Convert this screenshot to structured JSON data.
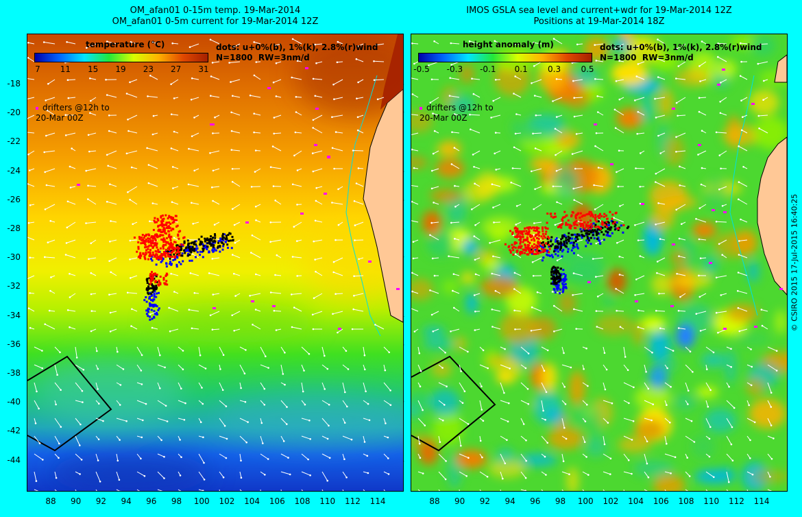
{
  "left_panel": {
    "title_line1": "OM_afan01 0-15m temp. 19-Mar-2014",
    "title_line2": "OM_afan01 0-5m current for 19-Mar-2014 12Z",
    "legend_title": "temperature (°C)",
    "colorbar_ticks": [
      "7",
      "11",
      "15",
      "19",
      "23",
      "27",
      "31"
    ],
    "colorbar_colors": [
      "#0000aa",
      "#0066ff",
      "#00e5ff",
      "#22e83a",
      "#d8ff00",
      "#ffb200",
      "#e04800",
      "#a52000"
    ],
    "dots_note": "dots: u+0%(b), 1%(k), 2.8%(r)wind\nN=1800  RW=3nm/d",
    "drifters_note": "drifters @12h to\n20-Mar 00Z"
  },
  "right_panel": {
    "title_line1": "IMOS GSLA sea level and current+wdr for 19-Mar-2014 12Z",
    "title_line2": "Positions at 19-Mar-2014 18Z",
    "legend_title": "height anomaly (m)",
    "colorbar_ticks": [
      "-0.5",
      "-0.3",
      "-0.1",
      "0.1",
      "0.3",
      "0.5"
    ],
    "colorbar_colors": [
      "#0000aa",
      "#0066ff",
      "#00e5ff",
      "#22e83a",
      "#d8ff00",
      "#ffb200",
      "#e04800",
      "#a52000"
    ],
    "dots_note": "dots: u+0%(b), 1%(k), 2.8%(r)wind\nN=1800  RW=3nm/d",
    "drifters_note": "drifters @12h to\n20-Mar 00Z"
  },
  "axes": {
    "lat_labels": [
      "-18",
      "-20",
      "-22",
      "-24",
      "-26",
      "-28",
      "-30",
      "-32",
      "-34",
      "-36",
      "-38",
      "-40",
      "-42",
      "-44"
    ],
    "lon_labels": [
      "88",
      "90",
      "92",
      "94",
      "96",
      "98",
      "100",
      "102",
      "104",
      "106",
      "108",
      "110",
      "112",
      "114"
    ]
  },
  "credit": "© CSIRO 2015  17-Jul-2015 16:40:25",
  "colors": {
    "background": "#00ffff",
    "land": "#ffc896",
    "drifter": "#ff00ff",
    "dots_blue": "#0000ff",
    "dots_black": "#000000",
    "dots_red": "#ff0000"
  }
}
